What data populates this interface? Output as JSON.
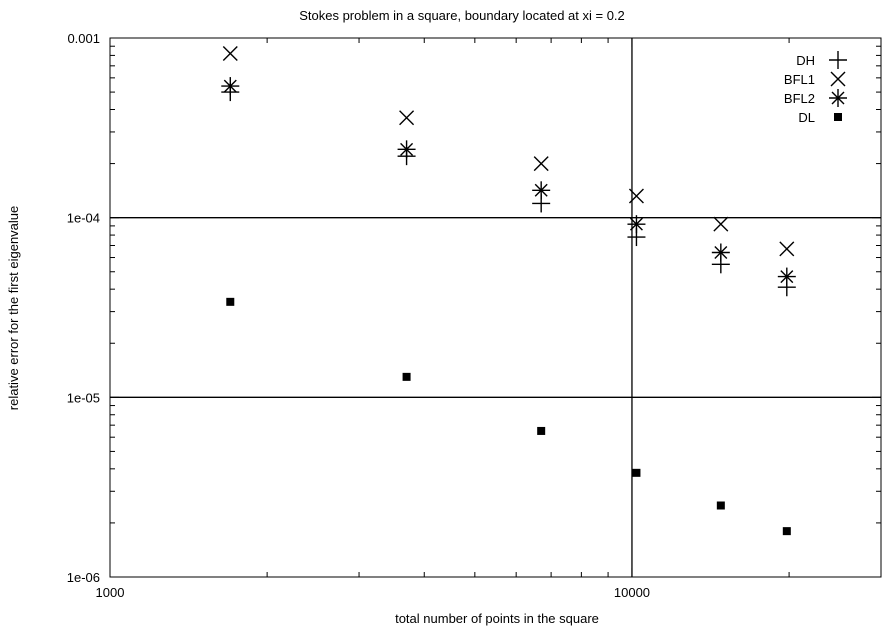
{
  "chart_data": {
    "type": "scatter",
    "title": "Stokes problem in a square, boundary located at xi = 0.2",
    "xlabel": "total number of points in the square",
    "ylabel": "relative error for the first eigenvalue",
    "x_scale": "log",
    "y_scale": "log",
    "xlim": [
      1000,
      30000
    ],
    "ylim": [
      1e-06,
      0.001
    ],
    "x_ticks": [
      {
        "value": 1000,
        "label": "1000"
      },
      {
        "value": 10000,
        "label": "10000"
      }
    ],
    "y_ticks": [
      {
        "value": 1e-06,
        "label": "1e-06"
      },
      {
        "value": 1e-05,
        "label": "1e-05"
      },
      {
        "value": 0.0001,
        "label": "1e-04"
      },
      {
        "value": 0.001,
        "label": "0.001"
      }
    ],
    "grid": {
      "major_lines_at": "x=10000; y=1e-05, 1e-04"
    },
    "legend_position": "top-right",
    "series": [
      {
        "name": "DH",
        "marker": "plus",
        "x": [
          1700,
          3700,
          6700,
          10200,
          14800,
          19800
        ],
        "y": [
          0.0005,
          0.00022,
          0.00012,
          7.8e-05,
          5.5e-05,
          4.1e-05
        ]
      },
      {
        "name": "BFL1",
        "marker": "cross",
        "x": [
          1700,
          3700,
          6700,
          10200,
          14800,
          19800
        ],
        "y": [
          0.00082,
          0.00036,
          0.0002,
          0.000132,
          9.2e-05,
          6.7e-05
        ]
      },
      {
        "name": "BFL2",
        "marker": "star",
        "x": [
          1700,
          3700,
          6700,
          10200,
          14800,
          19800
        ],
        "y": [
          0.00054,
          0.00024,
          0.000142,
          9.2e-05,
          6.4e-05,
          4.7e-05
        ]
      },
      {
        "name": "DL",
        "marker": "square",
        "x": [
          1700,
          3700,
          6700,
          10200,
          14800,
          19800
        ],
        "y": [
          3.4e-05,
          1.3e-05,
          6.5e-06,
          3.8e-06,
          2.5e-06,
          1.8e-06
        ]
      }
    ]
  }
}
